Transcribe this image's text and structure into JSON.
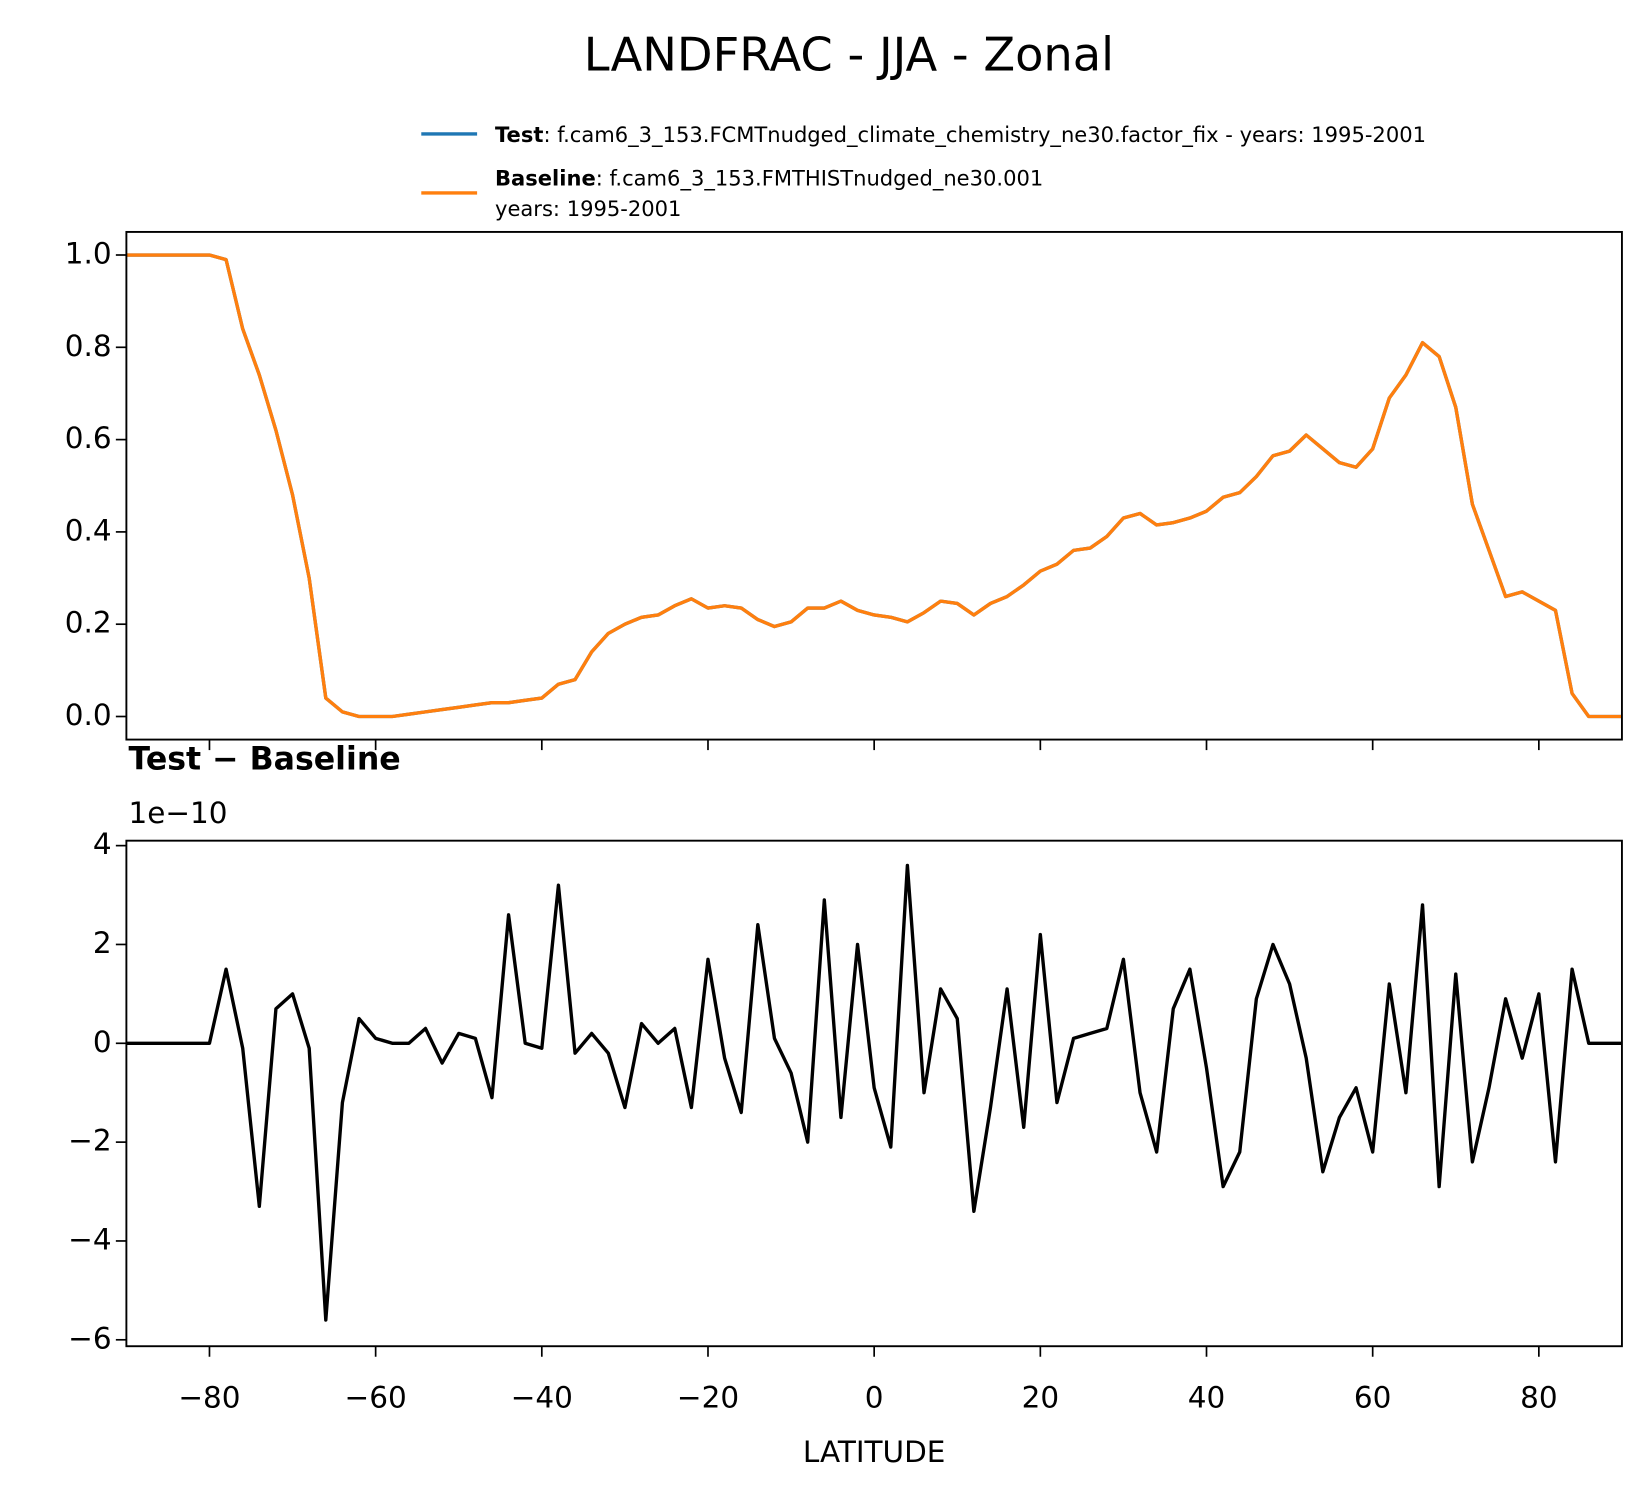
{
  "chart_data": [
    {
      "type": "line",
      "title": "LANDFRAC - JJA - Zonal",
      "x": [
        -90,
        -88,
        -86,
        -84,
        -82,
        -80,
        -78,
        -76,
        -74,
        -72,
        -70,
        -68,
        -66,
        -64,
        -62,
        -60,
        -58,
        -56,
        -54,
        -52,
        -50,
        -48,
        -46,
        -44,
        -42,
        -40,
        -38,
        -36,
        -34,
        -32,
        -30,
        -28,
        -26,
        -24,
        -22,
        -20,
        -18,
        -16,
        -14,
        -12,
        -10,
        -8,
        -6,
        -4,
        -2,
        0,
        2,
        4,
        6,
        8,
        10,
        12,
        14,
        16,
        18,
        20,
        22,
        24,
        26,
        28,
        30,
        32,
        34,
        36,
        38,
        40,
        42,
        44,
        46,
        48,
        50,
        52,
        54,
        56,
        58,
        60,
        62,
        64,
        66,
        68,
        70,
        72,
        74,
        76,
        78,
        80,
        82,
        84,
        86,
        88,
        90
      ],
      "series": [
        {
          "name": "Test",
          "color": "#1f77b4",
          "label_lines": [
            ": f.cam6_3_153.FCMTnudged_climate_chemistry_ne30.factor_fix - years: 1995-2001"
          ],
          "values": [
            1,
            1,
            1,
            1,
            1,
            1,
            0.99,
            0.84,
            0.74,
            0.62,
            0.48,
            0.3,
            0.04,
            0.01,
            0,
            0,
            0,
            0.005,
            0.01,
            0.015,
            0.02,
            0.025,
            0.03,
            0.03,
            0.035,
            0.04,
            0.07,
            0.08,
            0.14,
            0.18,
            0.2,
            0.215,
            0.22,
            0.24,
            0.255,
            0.235,
            0.24,
            0.235,
            0.21,
            0.195,
            0.205,
            0.235,
            0.235,
            0.25,
            0.23,
            0.22,
            0.215,
            0.205,
            0.225,
            0.25,
            0.245,
            0.22,
            0.245,
            0.26,
            0.285,
            0.315,
            0.33,
            0.36,
            0.365,
            0.39,
            0.43,
            0.44,
            0.415,
            0.42,
            0.43,
            0.445,
            0.475,
            0.485,
            0.52,
            0.565,
            0.575,
            0.61,
            0.58,
            0.55,
            0.54,
            0.58,
            0.69,
            0.74,
            0.81,
            0.78,
            0.67,
            0.46,
            0.36,
            0.26,
            0.27,
            0.25,
            0.23,
            0.05,
            0,
            0,
            0
          ]
        },
        {
          "name": "Baseline",
          "color": "#ff7f0e",
          "label_lines": [
            ": f.cam6_3_153.FMTHISTnudged_ne30.001",
            "years: 1995-2001"
          ],
          "values": [
            1,
            1,
            1,
            1,
            1,
            1,
            0.99,
            0.84,
            0.74,
            0.62,
            0.48,
            0.3,
            0.04,
            0.01,
            0,
            0,
            0,
            0.005,
            0.01,
            0.015,
            0.02,
            0.025,
            0.03,
            0.03,
            0.035,
            0.04,
            0.07,
            0.08,
            0.14,
            0.18,
            0.2,
            0.215,
            0.22,
            0.24,
            0.255,
            0.235,
            0.24,
            0.235,
            0.21,
            0.195,
            0.205,
            0.235,
            0.235,
            0.25,
            0.23,
            0.22,
            0.215,
            0.205,
            0.225,
            0.25,
            0.245,
            0.22,
            0.245,
            0.26,
            0.285,
            0.315,
            0.33,
            0.36,
            0.365,
            0.39,
            0.43,
            0.44,
            0.415,
            0.42,
            0.43,
            0.445,
            0.475,
            0.485,
            0.52,
            0.565,
            0.575,
            0.61,
            0.58,
            0.55,
            0.54,
            0.58,
            0.69,
            0.74,
            0.81,
            0.78,
            0.67,
            0.46,
            0.36,
            0.26,
            0.27,
            0.25,
            0.23,
            0.05,
            0,
            0,
            0
          ]
        }
      ],
      "xlim": [
        -90,
        90
      ],
      "ylim": [
        -0.05,
        1.05
      ],
      "yticks": [
        {
          "value": 0,
          "label": "0.0"
        },
        0.2,
        0.4,
        0.6,
        0.8,
        {
          "value": 1,
          "label": "1.0"
        }
      ],
      "legend": "upper right"
    },
    {
      "type": "line",
      "title": "Test − Baseline",
      "y_offset_label": "1e−10",
      "xlabel": "LATITUDE",
      "x": [
        -90,
        -88,
        -86,
        -84,
        -82,
        -80,
        -78,
        -76,
        -74,
        -72,
        -70,
        -68,
        -66,
        -64,
        -62,
        -60,
        -58,
        -56,
        -54,
        -52,
        -50,
        -48,
        -46,
        -44,
        -42,
        -40,
        -38,
        -36,
        -34,
        -32,
        -30,
        -28,
        -26,
        -24,
        -22,
        -20,
        -18,
        -16,
        -14,
        -12,
        -10,
        -8,
        -6,
        -4,
        -2,
        0,
        2,
        4,
        6,
        8,
        10,
        12,
        14,
        16,
        18,
        20,
        22,
        24,
        26,
        28,
        30,
        32,
        34,
        36,
        38,
        40,
        42,
        44,
        46,
        48,
        50,
        52,
        54,
        56,
        58,
        60,
        62,
        64,
        66,
        68,
        70,
        72,
        74,
        76,
        78,
        80,
        82,
        84,
        86,
        88,
        90
      ],
      "series": [
        {
          "color": "#000000",
          "values": [
            0,
            0,
            0,
            0,
            0,
            0,
            1.5,
            -0.1,
            -3.3,
            0.7,
            1.0,
            -0.1,
            -5.6,
            -1.2,
            0.5,
            0.1,
            0,
            0,
            0.3,
            -0.4,
            0.2,
            0.1,
            -1.1,
            2.6,
            0,
            -0.1,
            3.2,
            -0.2,
            0.2,
            -0.2,
            -1.3,
            0.4,
            0,
            0.3,
            -1.3,
            1.7,
            -0.3,
            -1.4,
            2.4,
            0.1,
            -0.6,
            -2.0,
            2.9,
            -1.5,
            2.0,
            -0.9,
            -2.1,
            3.6,
            -1.0,
            1.1,
            0.5,
            -3.4,
            -1.3,
            1.1,
            -1.7,
            2.2,
            -1.2,
            0.1,
            0.2,
            0.3,
            1.7,
            -1.0,
            -2.2,
            0.7,
            1.5,
            -0.5,
            -2.9,
            -2.2,
            0.9,
            2.0,
            1.2,
            -0.3,
            -2.6,
            -1.5,
            -0.9,
            -2.2,
            1.2,
            -1.0,
            2.8,
            -2.9,
            1.4,
            -2.4,
            -0.9,
            0.9,
            -0.3,
            1.0,
            -2.4,
            1.5,
            0,
            0,
            0
          ]
        }
      ],
      "xlim": [
        -90,
        90
      ],
      "ylim": [
        -6.13,
        4.1
      ],
      "xticks": [
        {
          "value": -80,
          "label": "−80"
        },
        {
          "value": -60,
          "label": "−60"
        },
        {
          "value": -40,
          "label": "−40"
        },
        {
          "value": -20,
          "label": "−20"
        },
        0,
        20,
        40,
        60,
        80
      ],
      "yticks": [
        {
          "value": -6,
          "label": "−6"
        },
        {
          "value": -4,
          "label": "−4"
        },
        {
          "value": -2,
          "label": "−2"
        },
        0,
        2,
        4
      ]
    }
  ]
}
